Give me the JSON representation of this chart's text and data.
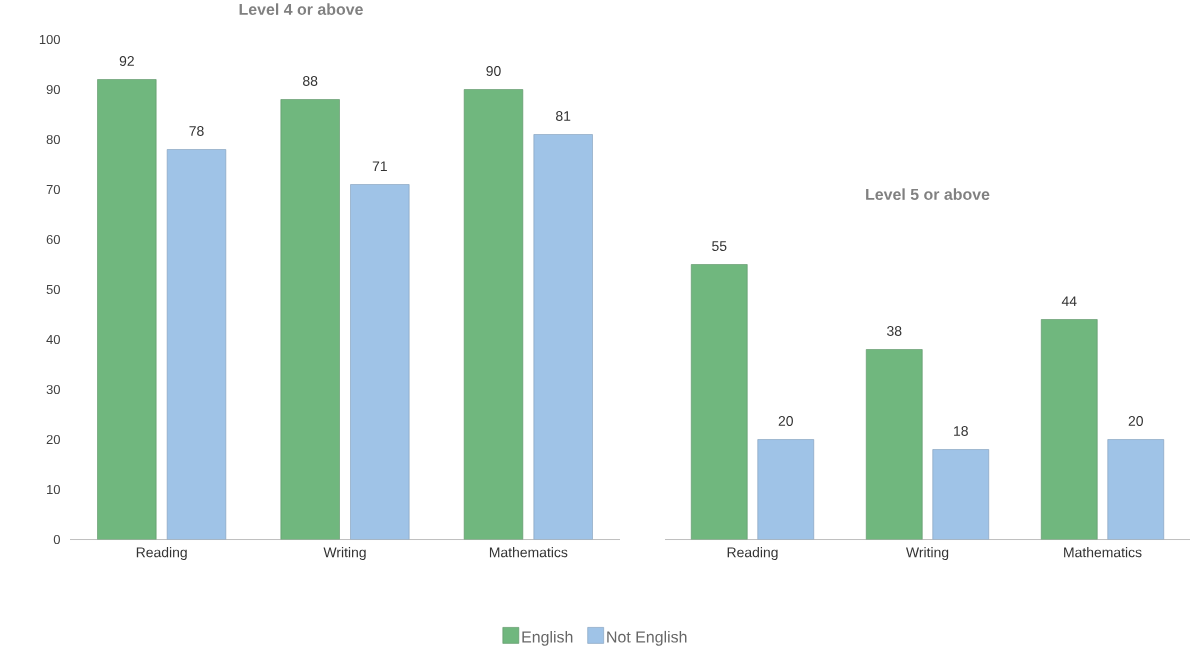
{
  "chart_data": [
    {
      "type": "bar",
      "title": "Level 4 or above",
      "categories": [
        "Reading",
        "Writing",
        "Mathematics"
      ],
      "series": [
        {
          "name": "English",
          "color": "#70b77e",
          "values": [
            92,
            88,
            90
          ]
        },
        {
          "name": "Not English",
          "color": "#9fc3e7",
          "values": [
            78,
            71,
            81
          ]
        }
      ],
      "ylim": [
        0,
        100
      ],
      "yticks": [
        0,
        10,
        20,
        30,
        40,
        50,
        60,
        70,
        80,
        90,
        100
      ],
      "data_labels": true,
      "legend": "bottom"
    },
    {
      "type": "bar",
      "title": "Level 5 or above",
      "categories": [
        "Reading",
        "Writing",
        "Mathematics"
      ],
      "series": [
        {
          "color": "#70b77e",
          "values": [
            55,
            38,
            44
          ]
        },
        {
          "color": "#9fc3e7",
          "values": [
            20,
            18,
            20
          ]
        }
      ],
      "ylim": [
        0,
        100
      ],
      "data_labels": true,
      "tick_labels": "x"
    }
  ]
}
